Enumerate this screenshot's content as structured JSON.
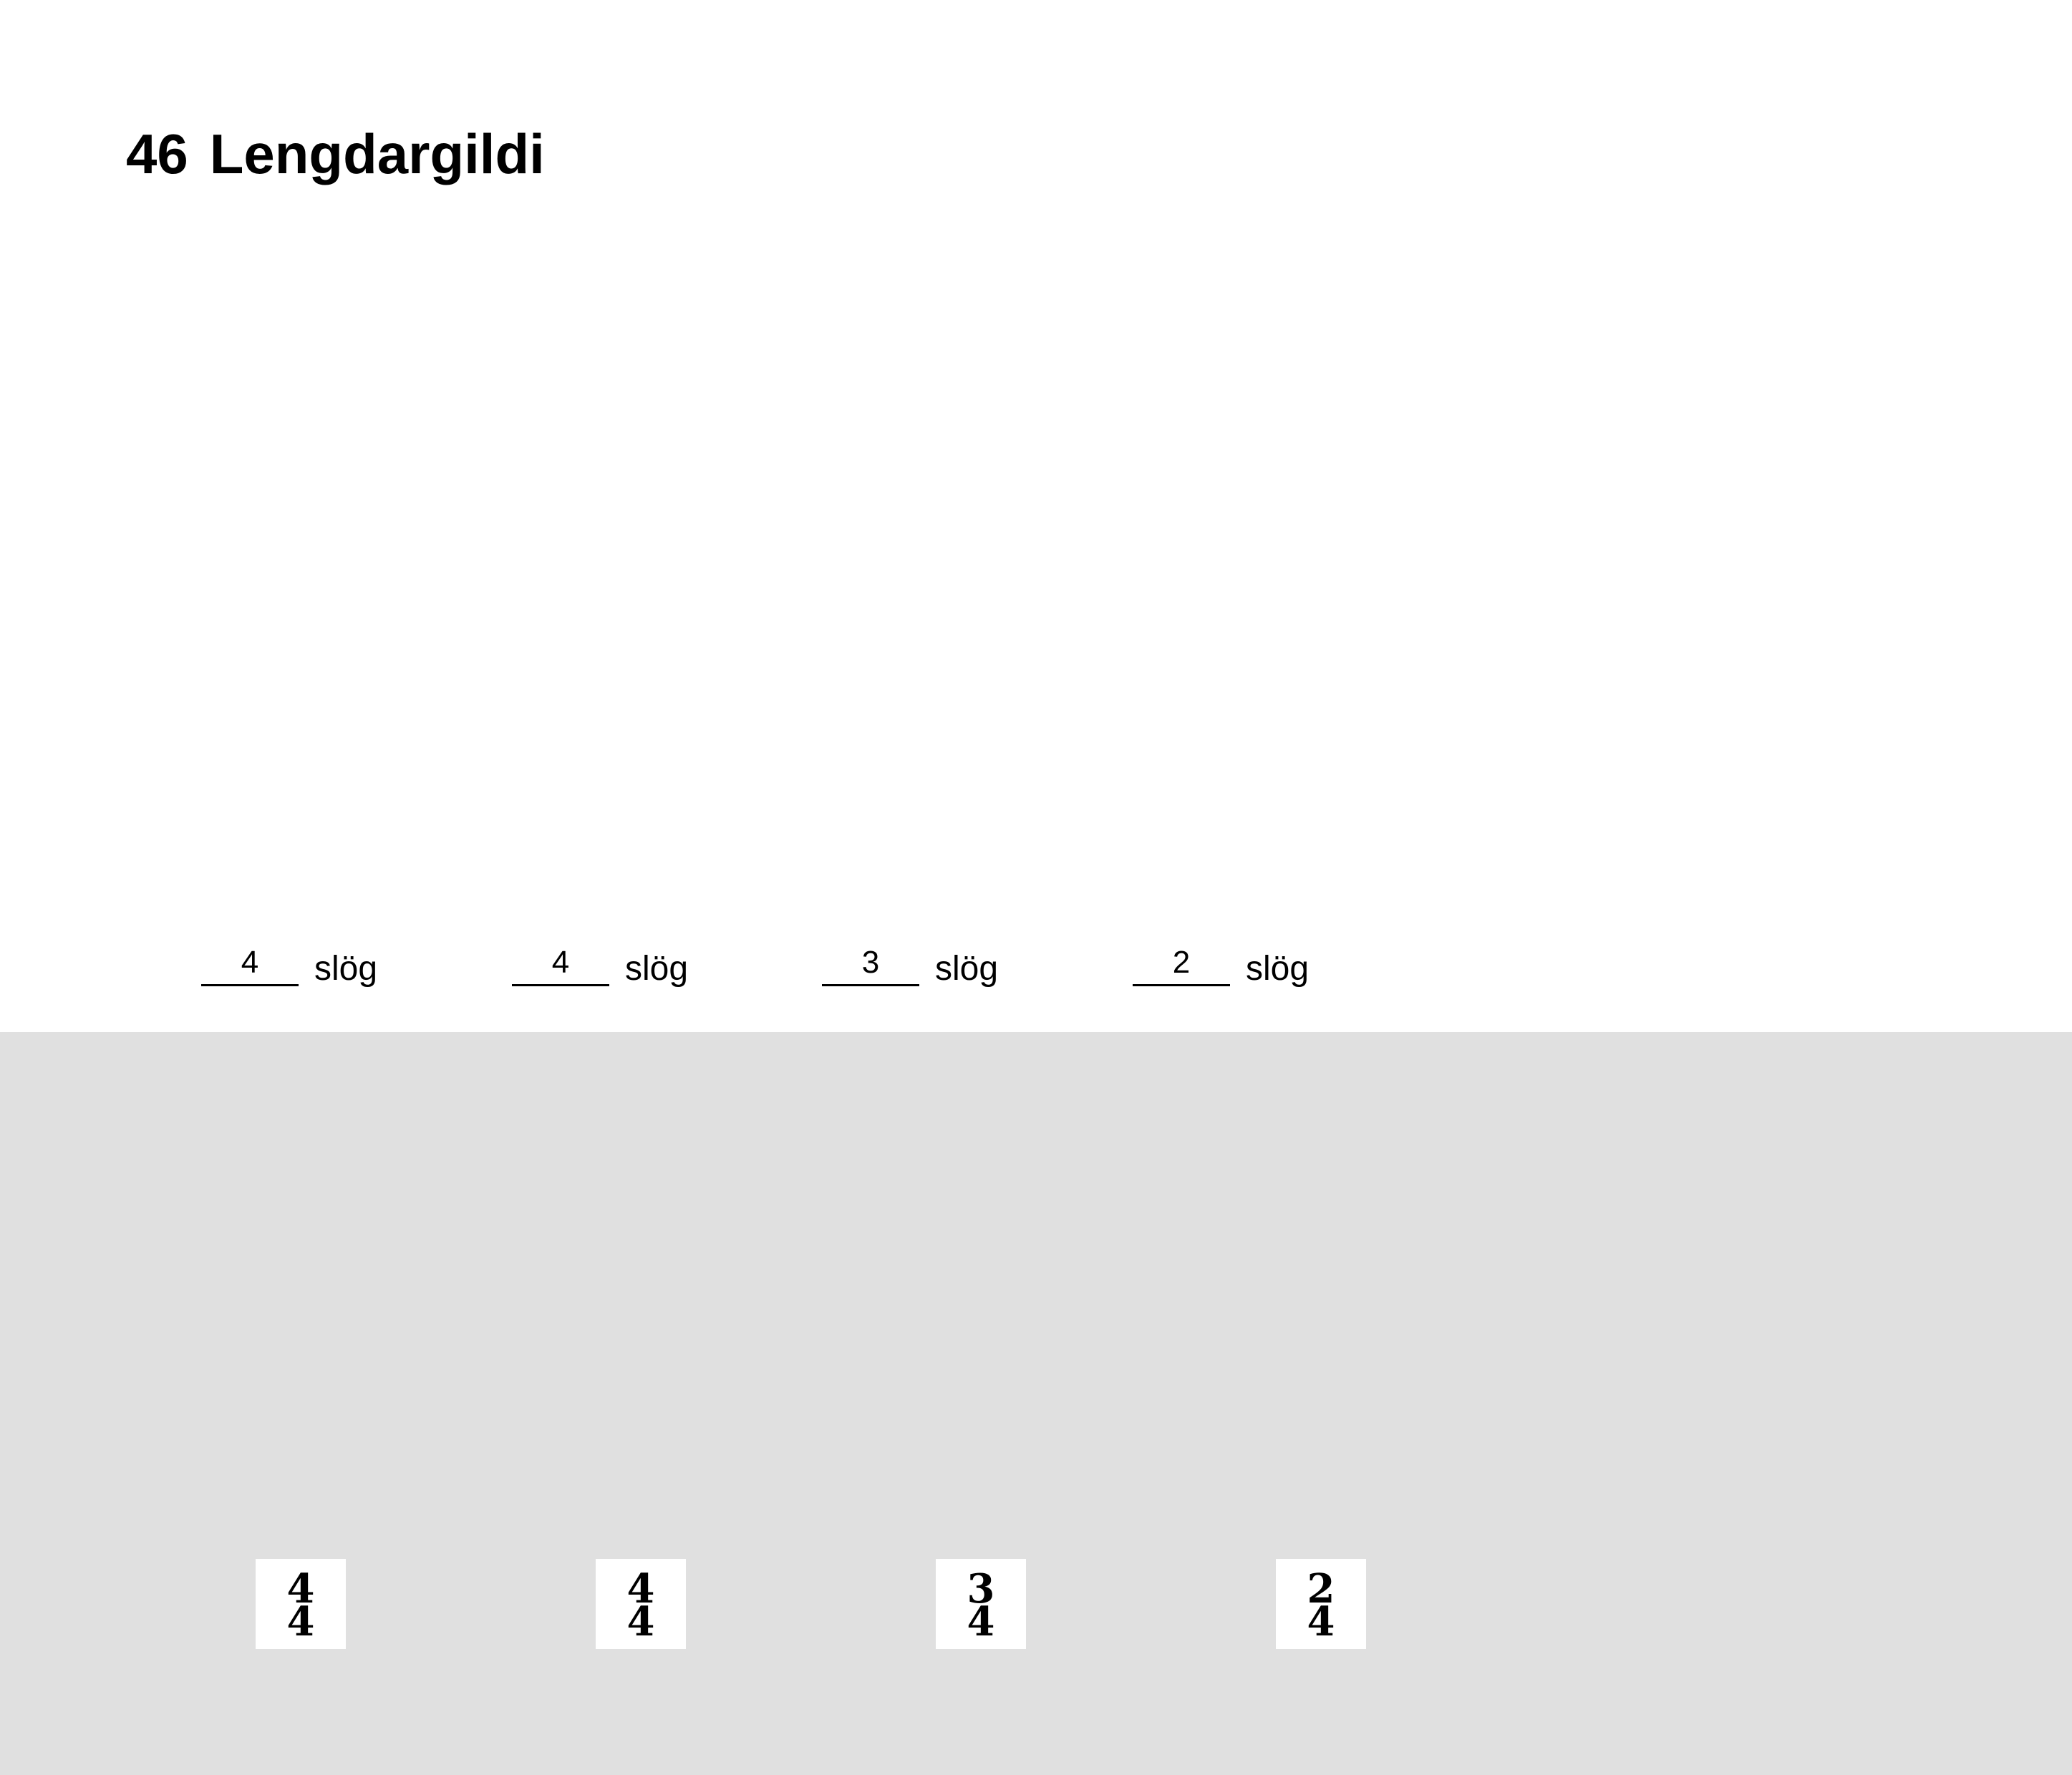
{
  "heading": {
    "number": "46",
    "title": "Lengdargildi"
  },
  "answers": [
    {
      "value": "4",
      "unit": "slög"
    },
    {
      "value": "4",
      "unit": "slög"
    },
    {
      "value": "3",
      "unit": "slög"
    },
    {
      "value": "2",
      "unit": "slög"
    }
  ],
  "time_signatures": [
    {
      "top": "4",
      "bottom": "4"
    },
    {
      "top": "4",
      "bottom": "4"
    },
    {
      "top": "3",
      "bottom": "4"
    },
    {
      "top": "2",
      "bottom": "4"
    }
  ],
  "colors": {
    "top_background": "#ffffff",
    "bottom_background": "#e0e0e0"
  }
}
